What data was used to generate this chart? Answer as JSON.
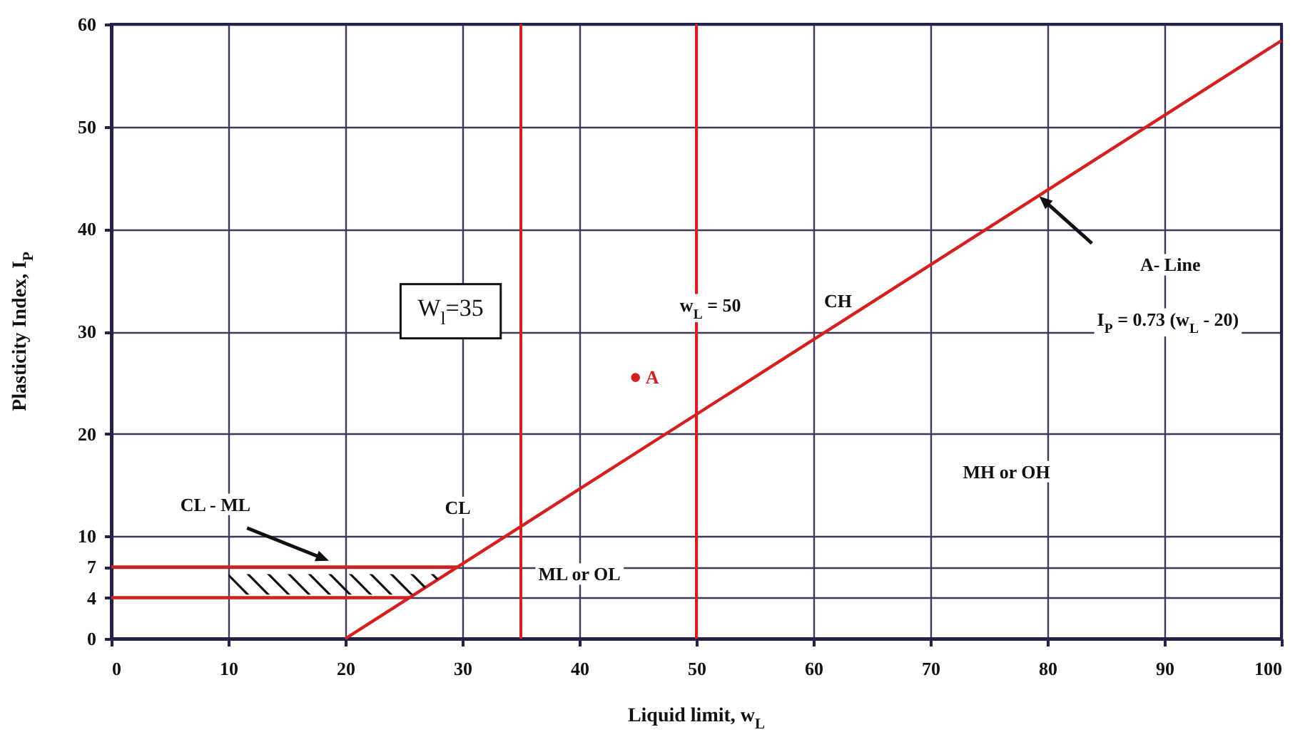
{
  "chart_data": {
    "type": "line",
    "xlabel": "Liquid limit, w$_{L}$",
    "ylabel": "Plasticity Index, I$_{P}$",
    "xlim": [
      0,
      100
    ],
    "xticks": [
      0,
      10,
      20,
      30,
      40,
      50,
      60,
      70,
      80,
      90,
      100
    ],
    "ylim": [
      0,
      60
    ],
    "yticks": [
      0,
      4,
      7,
      10,
      20,
      30,
      40,
      50,
      60
    ],
    "grid": true,
    "series": [
      {
        "x": [
          20,
          100
        ],
        "values": [
          0,
          58.4
        ],
        "color": "#d42020"
      },
      {
        "x": [
          0,
          29.6
        ],
        "values": [
          7,
          7
        ],
        "color": "#d42020"
      },
      {
        "x": [
          0,
          25.5
        ],
        "values": [
          4,
          4
        ],
        "color": "#d42020"
      },
      {
        "type": "scatter",
        "name": "A",
        "x": [
          44.8
        ],
        "values": [
          25.5
        ],
        "color": "#d42020",
        "marker": "circle"
      }
    ],
    "ref_lines": [
      {
        "axis": "x",
        "value": 35,
        "color": "#d42020"
      },
      {
        "axis": "x",
        "value": 50,
        "color": "#d42020"
      }
    ],
    "annotations": [
      "W$_{l}$=35",
      "w$_{L}$ = 50",
      "CH",
      "A- Line",
      "I$_{P}$ = 0.73 (w$_{L}$ - 20)",
      "CL - ML",
      "CL",
      "ML or OL",
      "MH or OH"
    ]
  }
}
